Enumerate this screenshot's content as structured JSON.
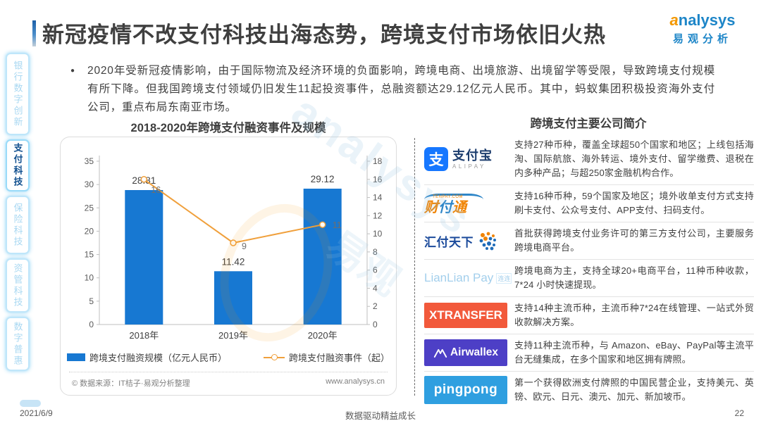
{
  "page": {
    "title": "新冠疫情不改支付科技出海态势，跨境支付市场依旧火热",
    "footer": {
      "date": "2021/6/9",
      "slogan": "数据驱动精益成长",
      "page_number": "22"
    }
  },
  "brand": {
    "logo_en": "analysys",
    "logo_cn": "易观分析"
  },
  "watermark": {
    "en": "analysys",
    "cn": "易观"
  },
  "sidebar": {
    "items": [
      {
        "label": "银行数字创新",
        "active": false
      },
      {
        "label": "支付科技",
        "active": true
      },
      {
        "label": "保险科技",
        "active": false
      },
      {
        "label": "资管科技",
        "active": false
      },
      {
        "label": "数字普惠",
        "active": false
      }
    ]
  },
  "summary": {
    "bullet": "2020年受新冠疫情影响，由于国际物流及经济环境的负面影响，跨境电商、出境旅游、出境留学等受限，导致跨境支付规模有所下降。但我国跨境支付领域仍旧发生11起投资事件，总融资额达29.12亿元人民币。其中，蚂蚁集团积极投资海外支付公司，重点布局东南亚市场。"
  },
  "chart_data": {
    "type": "bar",
    "title": "2018-2020年跨境支付融资事件及规模",
    "categories": [
      "2018年",
      "2019年",
      "2020年"
    ],
    "series": [
      {
        "name": "跨境支付融资规模（亿元人民币）",
        "type": "bar",
        "axis": "left",
        "color": "#1778D2",
        "values": [
          28.81,
          11.42,
          29.12
        ]
      },
      {
        "name": "跨境支付融资事件（起）",
        "type": "line",
        "axis": "right",
        "color": "#F0A03C",
        "values": [
          16,
          9,
          11
        ]
      }
    ],
    "left_axis": {
      "min": 0,
      "max": 35,
      "step": 5
    },
    "right_axis": {
      "min": 0,
      "max": 18,
      "step": 2
    },
    "grid": false,
    "legend_position": "bottom",
    "source_left": "© 数据来源：IT桔子·易观分析整理",
    "source_right": "www.analysys.cn"
  },
  "companies": {
    "title": "跨境支付主要公司简介",
    "rows": [
      {
        "logo_char": "支",
        "logo_cn": "支付宝",
        "logo_en": "ALIPAY",
        "desc": "支持27种币种，覆盖全球超50个国家和地区；上线包括海淘、国际航旅、海外转运、境外支付、留学缴费、退税在内多种产品；与超250家金融机构合作。"
      },
      {
        "logo_top": "TENPAY.COM",
        "logo_c1": "财",
        "logo_c2": "付",
        "logo_c3": "通",
        "desc": "支持16种币种，59个国家及地区；境外收单支付方式支持刷卡支付、公众号支付、APP支付、扫码支付。"
      },
      {
        "logo_text": "汇付天下",
        "desc": "首批获得跨境支付业务许可的第三方支付公司，主要服务跨境电商平台。"
      },
      {
        "logo_text": "LianLian Pay",
        "logo_suffix": "连连",
        "desc": "跨境电商为主，支持全球20+电商平台，11种币种收款，7*24 小时快速提现。"
      },
      {
        "logo_text": "XTRANSFER",
        "desc": "支持14种主流币种，主流币种7*24在线管理、一站式外贸收款解决方案。"
      },
      {
        "logo_text": "Airwallex",
        "desc": "支持11种主流币种，与 Amazon、eBay、PayPal等主流平台无缝集成，在多个国家和地区拥有牌照。"
      },
      {
        "logo_text": "pingpong",
        "desc": "第一个获得欧洲支付牌照的中国民营企业，支持美元、英镑、欧元、日元、澳元、加元、新加坡币。"
      }
    ]
  },
  "colors": {
    "bar_blue": "#1778D2",
    "line_orange": "#F0A03C",
    "sidebar_active_text": "#11508F",
    "sidebar_inactive_text": "#A9D8F2",
    "brand_orange": "#F39800",
    "brand_blue": "#1E86C8",
    "alipay_blue": "#1677FF",
    "tenpay_orange": "#F08300",
    "huifu_blue": "#1B4A9B",
    "lianlian_blue": "#A3CFEC",
    "xtransfer_red": "#F2593B",
    "airwallex_indigo": "#4D3FC6",
    "pingpong_blue": "#2F9FE0"
  }
}
